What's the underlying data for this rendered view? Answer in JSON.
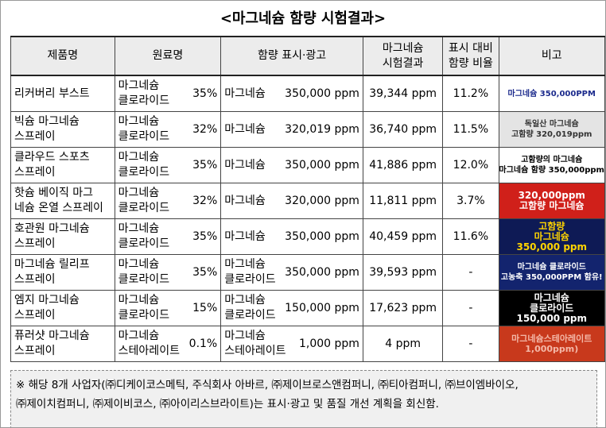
{
  "title": "<마그네슘 함량 시험결과>",
  "table": {
    "header": [
      [
        "제품명"
      ],
      [
        "원료명"
      ],
      [
        "함량 표시·광고"
      ],
      [
        "마그네슘",
        "시험결과"
      ],
      [
        "표시 대비",
        "함량 비율"
      ],
      [
        "비고"
      ]
    ],
    "rows": [
      {
        "product": [
          "리커버리 부스트"
        ],
        "ingredient": [
          "마그네슘",
          "클로라이드"
        ],
        "percent": "35%",
        "claim": [
          "마그네슘"
        ],
        "amount": "350,000 ppm",
        "result": "39,344 ppm",
        "ratio": "11.2%",
        "remark": [
          "마그네슘 350,000PPM"
        ]
      },
      {
        "product": [
          "빅슘 마그네슘",
          "스프레이"
        ],
        "ingredient": [
          "마그네슘",
          "클로라이드"
        ],
        "percent": "32%",
        "claim": [
          "마그네슘"
        ],
        "amount": "320,019 ppm",
        "result": "36,740 ppm",
        "ratio": "11.5%",
        "remark": [
          "독일산 마그네슘",
          "고함량 320,019ppm"
        ]
      },
      {
        "product": [
          "클라우드 스포츠",
          "스프레이"
        ],
        "ingredient": [
          "마그네슘",
          "클로라이드"
        ],
        "percent": "35%",
        "claim": [
          "마그네슘"
        ],
        "amount": "350,000 ppm",
        "result": "41,886 ppm",
        "ratio": "12.0%",
        "remark": [
          "고함량의 마그네슘",
          "마그네슘 함량 350,000ppm"
        ]
      },
      {
        "product": [
          "핫슘 베이직 마그",
          "네슘 온열 스프레이"
        ],
        "ingredient": [
          "마그네슘",
          "클로라이드"
        ],
        "percent": "32%",
        "claim": [
          "마그네슘"
        ],
        "amount": "320,000 ppm",
        "result": "11,811 ppm",
        "ratio": "3.7%",
        "remark": [
          "320,000ppm",
          "고함량 마그네슘"
        ]
      },
      {
        "product": [
          "호관원 마그네슘",
          "스프레이"
        ],
        "ingredient": [
          "마그네슘",
          "클로라이드"
        ],
        "percent": "35%",
        "claim": [
          "마그네슘"
        ],
        "amount": "350,000 ppm",
        "result": "40,459 ppm",
        "ratio": "11.6%",
        "remark": [
          "고함량",
          "마그네슘",
          "350,000 ppm"
        ]
      },
      {
        "product": [
          "마그네슘 릴리프",
          "스프레이"
        ],
        "ingredient": [
          "마그네슘",
          "클로라이드"
        ],
        "percent": "35%",
        "claim": [
          "마그네슘",
          "클로라이드"
        ],
        "amount": "350,000 ppm",
        "result": "39,593 ppm",
        "ratio": "-",
        "remark": [
          "마그네슘 클로라이드",
          "고농축 350,000PPM 함유!"
        ]
      },
      {
        "product": [
          "엠지 마그네슘",
          "스프레이"
        ],
        "ingredient": [
          "마그네슘",
          "클로라이드"
        ],
        "percent": "15%",
        "claim": [
          "마그네슘",
          "클로라이드"
        ],
        "amount": "150,000 ppm",
        "result": "17,623 ppm",
        "ratio": "-",
        "remark": [
          "마그네슘",
          "클로라이드",
          "150,000 ppm"
        ]
      },
      {
        "product": [
          "퓨러샷 마그네슘",
          "스프레이"
        ],
        "ingredient": [
          "마그네슘",
          "스테아레이트"
        ],
        "percent": "0.1%",
        "claim": [
          "마그네슘",
          "스테아레이트"
        ],
        "amount": "1,000 ppm",
        "result": "4 ppm",
        "ratio": "-",
        "remark": [
          "마그네슘스테아레이트",
          "1,000ppm)"
        ]
      }
    ]
  },
  "footnote": [
    "※ 해당 8개 사업자(㈜디케이코스메틱, 주식회사 아바르, ㈜제이브로스앤컴퍼니, ㈜티아컴퍼니, ㈜브이엠바이오,",
    "㈜제이치컴퍼니, ㈜제이비코스, ㈜아이리스브라이트)는 표시·광고 및 품질 개선 계획을 회신함."
  ]
}
